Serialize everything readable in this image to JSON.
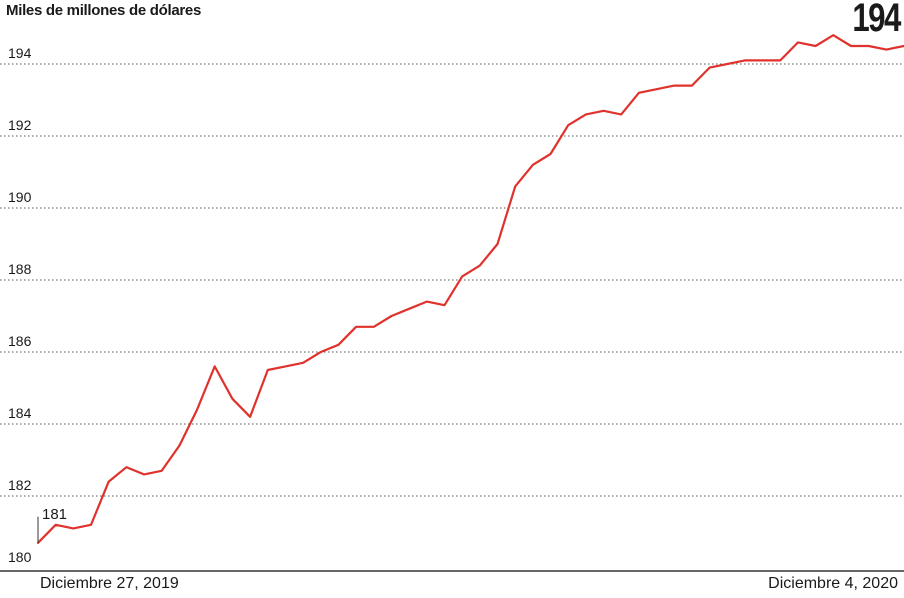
{
  "chart_data": {
    "type": "line",
    "ylabel": "Miles de millones de dólares",
    "start_label": "181",
    "end_label": "194",
    "x_start_label": "Diciembre 27, 2019",
    "x_end_label": "Diciembre 4, 2020",
    "ylim": [
      180,
      194.8
    ],
    "yticks": [
      180,
      182,
      184,
      186,
      188,
      190,
      192,
      194
    ],
    "grid": true,
    "line_color": "#e0322d",
    "series": [
      {
        "values": [
          180.7,
          181.2,
          181.1,
          181.2,
          182.4,
          182.8,
          182.6,
          182.7,
          183.4,
          184.4,
          185.6,
          184.7,
          184.2,
          185.5,
          185.6,
          185.7,
          186.0,
          186.2,
          186.7,
          186.7,
          187.0,
          187.2,
          187.4,
          187.3,
          188.1,
          188.4,
          189.0,
          190.6,
          191.2,
          191.5,
          192.3,
          192.6,
          192.7,
          192.6,
          193.2,
          193.3,
          193.4,
          193.4,
          193.9,
          194.0,
          194.1,
          194.1,
          194.1,
          194.6,
          194.5,
          194.8,
          194.5,
          194.5,
          194.4,
          194.5
        ]
      }
    ]
  }
}
